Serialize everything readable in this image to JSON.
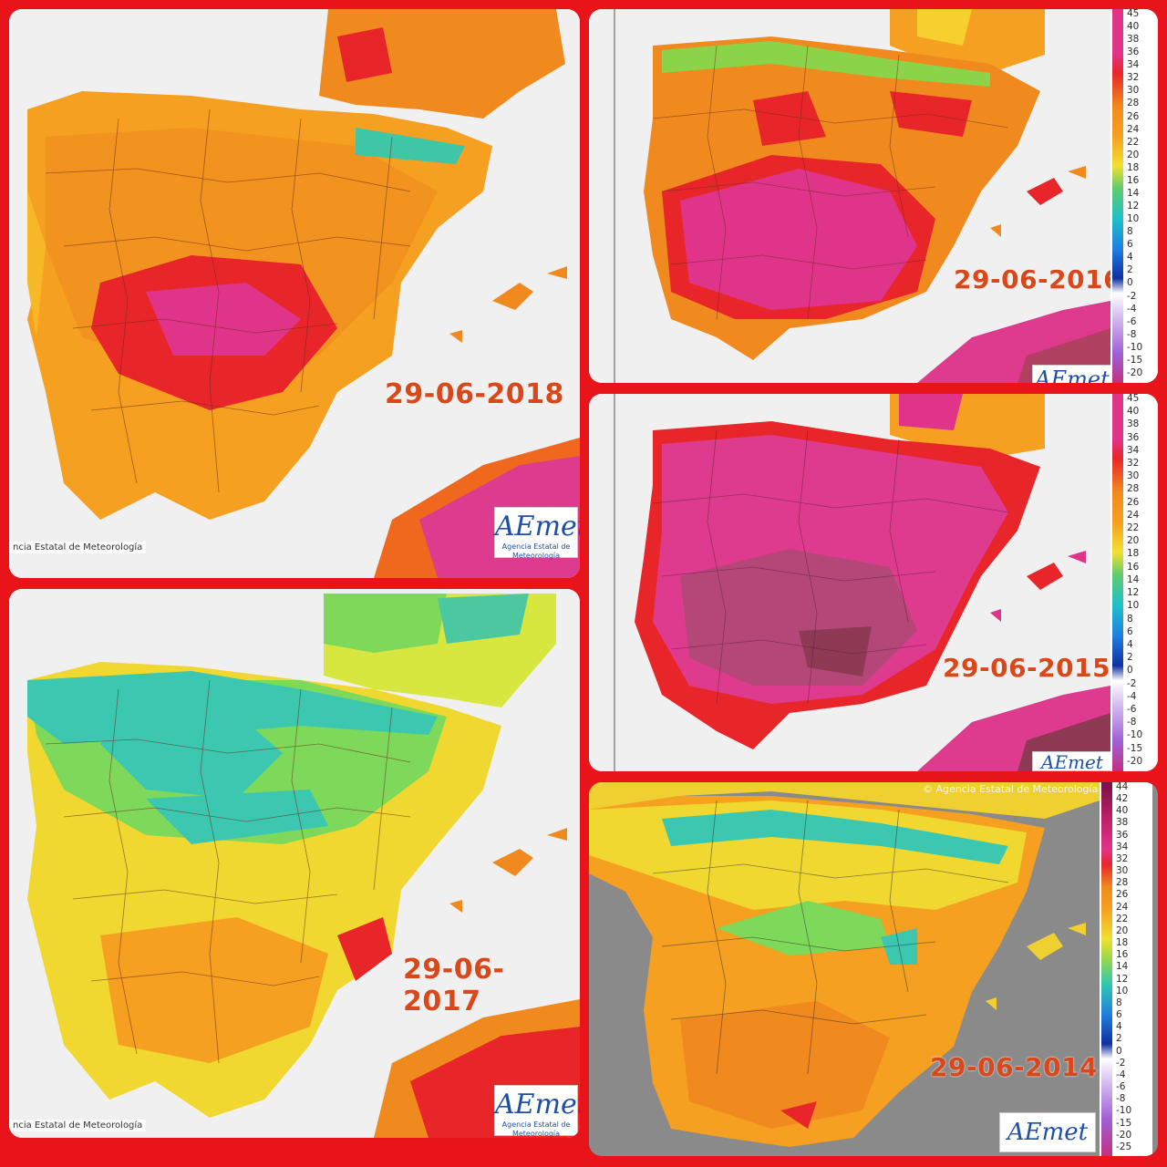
{
  "panels": [
    {
      "id": "p2018",
      "date": "29-06-2018",
      "credit": "ncia Estatal de Meteorología",
      "logo": "AEmet",
      "logo_sub": "Agencia Estatal de Meteorología"
    },
    {
      "id": "p2016",
      "date": "29-06-2016",
      "logo": "AEmet"
    },
    {
      "id": "p2015",
      "date": "29-06-2015",
      "logo": "AEmet"
    },
    {
      "id": "p2017",
      "date": "29-06-2017",
      "credit": "ncia Estatal de Meteorología",
      "logo": "AEmet",
      "logo_sub": "Agencia Estatal de Meteorología"
    },
    {
      "id": "p2014",
      "date": "29-06-2014",
      "credit": "© Agencia Estatal de Meteorología",
      "logo": "AEmet"
    }
  ],
  "scale_upper": {
    "labels": [
      "45",
      "40",
      "38",
      "36",
      "34",
      "32",
      "30",
      "28",
      "26",
      "24",
      "22",
      "20",
      "18",
      "16",
      "14",
      "12",
      "10",
      "8",
      "6",
      "4",
      "2",
      "0",
      "-2",
      "-4",
      "-6",
      "-8",
      "-10",
      "-15",
      "-20"
    ]
  },
  "scale_lower": {
    "labels": [
      "44",
      "42",
      "40",
      "38",
      "36",
      "34",
      "32",
      "30",
      "28",
      "26",
      "24",
      "22",
      "20",
      "18",
      "16",
      "14",
      "12",
      "10",
      "8",
      "6",
      "4",
      "2",
      "0",
      "-2",
      "-4",
      "-6",
      "-8",
      "-10",
      "-15",
      "-20",
      "-25"
    ]
  },
  "colors": {
    "frame": "#e8141a",
    "sea": "#f2f2f2",
    "sea_2014": "#8a8a8a",
    "label": "#d9481a"
  }
}
